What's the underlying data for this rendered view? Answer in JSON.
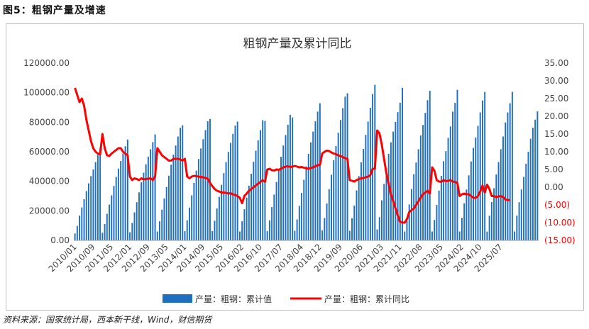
{
  "figure_label": "图5：粗钢产量及增速",
  "source_note": "资料来源：国家统计局，西本新干线，Wind，财信期货",
  "colors": {
    "bar": "#1f6fbf",
    "line": "#ff0000",
    "neg_tick": "#ff0000"
  },
  "chart_data": {
    "type": "bar",
    "title": "粗钢产量及累计同比",
    "legend_position": "bottom",
    "grid": false,
    "x_tick_labels": [
      "2010/01",
      "2010/09",
      "2011/05",
      "2012/01",
      "2012/09",
      "2013/05",
      "2014/01",
      "2014/09",
      "2015/05",
      "2016/02",
      "2016/10",
      "2017/07",
      "2018/04",
      "2018/12",
      "2019/09",
      "2020/06",
      "2021/03",
      "2021/11",
      "2022/08",
      "2023/05",
      "2024/02",
      "2024/10",
      "2025/07"
    ],
    "left_axis": {
      "ylim": [
        0,
        120000
      ],
      "tick_labels": [
        "0.00",
        "20000.00",
        "40000.00",
        "60000.00",
        "80000.00",
        "100000.00",
        "120000.00"
      ]
    },
    "right_axis": {
      "ylim": [
        -15,
        35
      ],
      "tick_labels": [
        "(15.00)",
        "(10.00)",
        "(5.00)",
        "0.00",
        "5.00",
        "10.00",
        "15.00",
        "20.00",
        "25.00",
        "30.00",
        "35.00"
      ]
    },
    "series": [
      {
        "name": "产量：粗钢：累计值",
        "type": "bar",
        "axis": "left",
        "start": "2010/01",
        "values": [
          4700,
          9800,
          16800,
          22300,
          27900,
          33400,
          38600,
          43500,
          48000,
          53000,
          58000,
          62700,
          5200,
          11000,
          18000,
          24200,
          30500,
          36800,
          43000,
          48600,
          53700,
          58800,
          63700,
          68300,
          5500,
          11800,
          19000,
          25800,
          32500,
          39300,
          45800,
          51500,
          56700,
          61700,
          66500,
          71700,
          6000,
          12900,
          20800,
          28400,
          36100,
          43800,
          51200,
          58000,
          64200,
          70300,
          76200,
          77900,
          6200,
          13600,
          22200,
          30500,
          38900,
          47200,
          55100,
          62200,
          68500,
          74700,
          80600,
          82200,
          6200,
          13300,
          21600,
          29500,
          37600,
          45500,
          53000,
          59900,
          66000,
          72100,
          77700,
          80400,
          6000,
          12900,
          21100,
          29000,
          37000,
          45100,
          53200,
          60700,
          67700,
          74600,
          81300,
          80800,
          6200,
          13600,
          22500,
          31000,
          39500,
          48300,
          56600,
          64200,
          71300,
          78300,
          85000,
          83200,
          6500,
          14200,
          23400,
          32100,
          41000,
          50100,
          58600,
          66400,
          73600,
          80600,
          87200,
          92800,
          6800,
          15100,
          25000,
          34600,
          44400,
          54200,
          63800,
          72900,
          81500,
          89500,
          97300,
          99600,
          6500,
          15000,
          23500,
          33800,
          43500,
          52800,
          61900,
          71400,
          80400,
          89800,
          99100,
          105300,
          7400,
          15700,
          27100,
          38200,
          48500,
          58600,
          66400,
          73600,
          80200,
          86800,
          93200,
          103300,
          6000,
          13100,
          24300,
          34700,
          44800,
          52700,
          61700,
          71000,
          78100,
          86300,
          94900,
          101300,
          6000,
          13800,
          24000,
          33700,
          43700,
          53600,
          60400,
          69400,
          77100,
          87200,
          93100,
          101900,
          6000,
          15300,
          25100,
          34400,
          44000,
          53400,
          62600,
          69600,
          77500,
          86600,
          94700,
          100500,
          5900,
          16700,
          25900,
          35300,
          44600,
          53000,
          61700,
          70300,
          79800,
          86600,
          92800,
          100500,
          6000,
          16800,
          25800,
          34500,
          43000,
          51900,
          60000,
          68800,
          76200,
          81700,
          87300
        ]
      },
      {
        "name": "产量：粗钢：累计同比",
        "type": "line",
        "axis": "right",
        "start": "2010/01",
        "values": [
          28,
          26,
          24,
          25,
          23,
          19,
          16,
          13,
          11,
          10,
          9.5,
          9.3,
          15,
          11,
          9,
          8.8,
          9.5,
          10,
          10.5,
          11,
          11,
          10,
          9.5,
          9,
          3,
          2,
          2.5,
          2.3,
          2,
          2.5,
          2.2,
          2.3,
          2.4,
          2.5,
          2,
          3,
          11,
          10,
          9,
          8.5,
          8,
          7.5,
          7.5,
          8,
          8,
          8,
          7.8,
          7.5,
          8,
          3,
          2.5,
          3,
          3.2,
          3.1,
          3,
          2.9,
          2.8,
          2.6,
          2.4,
          1.2,
          0.3,
          -0.5,
          -1,
          -1.2,
          -1.5,
          -1.5,
          -1.6,
          -1.8,
          -1.7,
          -2,
          -2.2,
          -2.5,
          -3,
          -4.5,
          -2.5,
          -1.8,
          -1,
          -0.5,
          0,
          0.5,
          1,
          1.5,
          2,
          1.5,
          5,
          5.2,
          4.8,
          4.7,
          5,
          4.9,
          5.2,
          5.6,
          5.8,
          5.9,
          5.7,
          5.8,
          6,
          5.8,
          5.6,
          5.7,
          5.5,
          5.3,
          5.2,
          5.4,
          5.6,
          5.9,
          6.2,
          6.3,
          9.5,
          10,
          10.3,
          10.2,
          9.8,
          9.5,
          9.3,
          9,
          8.8,
          8.5,
          8.2,
          8,
          2,
          1.8,
          1.6,
          2,
          2.3,
          2.5,
          2.6,
          2.8,
          3,
          3.4,
          5.2,
          5.2,
          16,
          15.2,
          12,
          8,
          4,
          1,
          -2,
          -4,
          -6,
          -8,
          -9.8,
          -10,
          -10,
          -9,
          -7,
          -6.5,
          -6,
          -5,
          -4,
          -3,
          -2,
          -1.5,
          -1,
          -1.8,
          5.6,
          4.6,
          2,
          1.6,
          1.5,
          2,
          1.7,
          1.8,
          2,
          1.6,
          1.5,
          1.2,
          -2.5,
          -2,
          -1.8,
          -2,
          -2,
          -2.5,
          -3,
          -3,
          -2.5,
          -1.2,
          0.5,
          -1.5,
          0.7,
          -0.5,
          -2.5,
          -2.5,
          -2.8,
          -2.6,
          -2.5,
          -2.8,
          -3.5,
          -3.6,
          -3.7
        ]
      }
    ]
  }
}
